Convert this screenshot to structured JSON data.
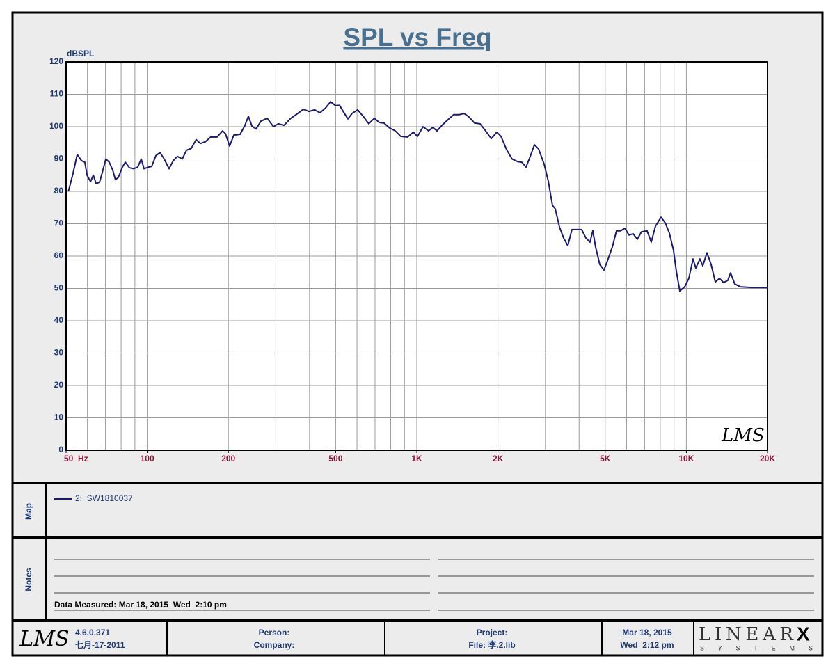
{
  "chart_data": {
    "type": "line",
    "title": "SPL vs Freq",
    "y_label": "dBSPL",
    "watermark": "LMS",
    "x": [
      51,
      53,
      55,
      57,
      58.7,
      59.8,
      61.6,
      63.1,
      64.6,
      66.5,
      68.1,
      70.2,
      72.3,
      74.5,
      76.2,
      78.1,
      80.9,
      82.9,
      85.9,
      89,
      92.2,
      95,
      97.3,
      101,
      103.9,
      107.6,
      111.5,
      115.6,
      120.5,
      124.9,
      129.4,
      134.9,
      139.8,
      145.7,
      151.9,
      157.4,
      164.1,
      172.1,
      181.6,
      190.5,
      195.1,
      202.1,
      209.5,
      221,
      230.4,
      237.3,
      244.5,
      253.4,
      264.1,
      278.6,
      293.9,
      306.4,
      321.3,
      341,
      362,
      379.6,
      398.1,
      417.5,
      437.8,
      459.1,
      478.7,
      499,
      516.9,
      538.8,
      555.1,
      575.3,
      603.3,
      632.6,
      663.4,
      695.7,
      725.3,
      756.2,
      792.9,
      831.8,
      871.8,
      925.5,
      970.7,
      1006,
      1055,
      1106,
      1146,
      1188,
      1246,
      1307,
      1370,
      1437,
      1498,
      1562,
      1638,
      1717,
      1800,
      1889,
      1981,
      2053,
      2153,
      2257,
      2367,
      2453,
      2543,
      2635,
      2731,
      2830,
      2968,
      3074,
      3186,
      3263,
      3382,
      3504,
      3632,
      3764,
      3948,
      4089,
      4238,
      4391,
      4498,
      4606,
      4773,
      4947,
      5126,
      5313,
      5505,
      5705,
      5911,
      6126,
      6348,
      6578,
      6817,
      7150,
      7409,
      7678,
      8054,
      8345,
      8650,
      8964,
      9180,
      9456,
      9858,
      10214,
      10588,
      10841,
      11233,
      11506,
      11925,
      12358,
      12806,
      13269,
      13750,
      14250,
      14590,
      15120,
      15860,
      17445,
      20000
    ],
    "series": [
      {
        "name": "2:  SW1810037",
        "color": "#1a1a6e",
        "values": [
          80,
          85.4,
          91.4,
          89.5,
          89,
          85,
          83,
          85,
          82.4,
          82.8,
          85.8,
          90,
          89,
          86.5,
          83.6,
          84.3,
          87.5,
          89,
          87.3,
          87,
          87.5,
          90,
          87,
          87.5,
          87.7,
          91,
          92,
          90,
          87,
          89.5,
          90.8,
          90,
          92.7,
          93.3,
          96,
          94.8,
          95.3,
          96.8,
          96.8,
          98.7,
          97.8,
          94,
          97.4,
          97.6,
          100.4,
          103.2,
          100.2,
          99.3,
          101.7,
          102.6,
          100,
          100.9,
          100.4,
          102.6,
          104.1,
          105.4,
          104.7,
          105.2,
          104.3,
          105.8,
          107.7,
          106.5,
          106.6,
          104.1,
          102.4,
          104.1,
          105.2,
          103.2,
          100.9,
          102.6,
          101.3,
          101.1,
          99.6,
          98.7,
          97,
          96.8,
          98.3,
          97,
          100,
          98.7,
          99.8,
          98.7,
          100.6,
          102.2,
          103.7,
          103.7,
          104.1,
          103,
          101.1,
          100.9,
          98.7,
          96.3,
          98.3,
          97,
          92.9,
          90,
          89.2,
          89,
          87.5,
          90.8,
          94.4,
          93.1,
          88.4,
          83.2,
          75.7,
          74.6,
          69,
          65.6,
          63.2,
          68.2,
          68.2,
          68.2,
          65.6,
          64.3,
          67.8,
          62.8,
          57.4,
          55.7,
          59.1,
          62.8,
          67.8,
          67.8,
          68.6,
          66.5,
          66.9,
          65.2,
          67.5,
          67.8,
          64.3,
          69.2,
          72,
          70.3,
          67.1,
          61.7,
          55.3,
          49.2,
          50.5,
          53.1,
          59.1,
          56.3,
          59.1,
          57,
          61,
          57.4,
          52,
          53.1,
          51.8,
          52.5,
          54.8,
          51.4,
          50.5,
          50.3,
          50.3
        ]
      }
    ],
    "xscale": "log",
    "xlim": [
      50,
      20000
    ],
    "ylim": [
      0,
      120
    ],
    "yticks": [
      0,
      10,
      20,
      30,
      40,
      50,
      60,
      70,
      80,
      90,
      100,
      110,
      120
    ],
    "xticks": [
      {
        "value": 50,
        "label": "50  Hz"
      },
      100,
      200,
      500,
      {
        "value": 1000,
        "label": "1K"
      },
      {
        "value": 2000,
        "label": "2K"
      },
      {
        "value": 5000,
        "label": "5K"
      },
      {
        "value": 10000,
        "label": "10K"
      },
      {
        "value": 20000,
        "label": "20K"
      }
    ],
    "xgrid": [
      60,
      70,
      80,
      90,
      100,
      200,
      300,
      400,
      500,
      600,
      700,
      800,
      900,
      1000,
      2000,
      3000,
      4000,
      5000,
      6000,
      7000,
      8000,
      9000,
      10000
    ],
    "grid": true
  },
  "map": {
    "label": "Map"
  },
  "notes": {
    "label": "Notes",
    "text": "Data Measured: Mar 18, 2015  Wed  2:10 pm"
  },
  "footer": {
    "logo": "LMS",
    "version": "4.6.0.371",
    "build_date": "七月-17-2011",
    "person": "Person:",
    "company": "Company:",
    "project": "Project:",
    "file": "File: 李.2.lib",
    "date": "Mar 18, 2015",
    "time": "Wed  2:12 pm",
    "brand": "LINEAR",
    "brand_mark": "X",
    "brand_sub": "S  Y  S  T  E  M  S"
  }
}
